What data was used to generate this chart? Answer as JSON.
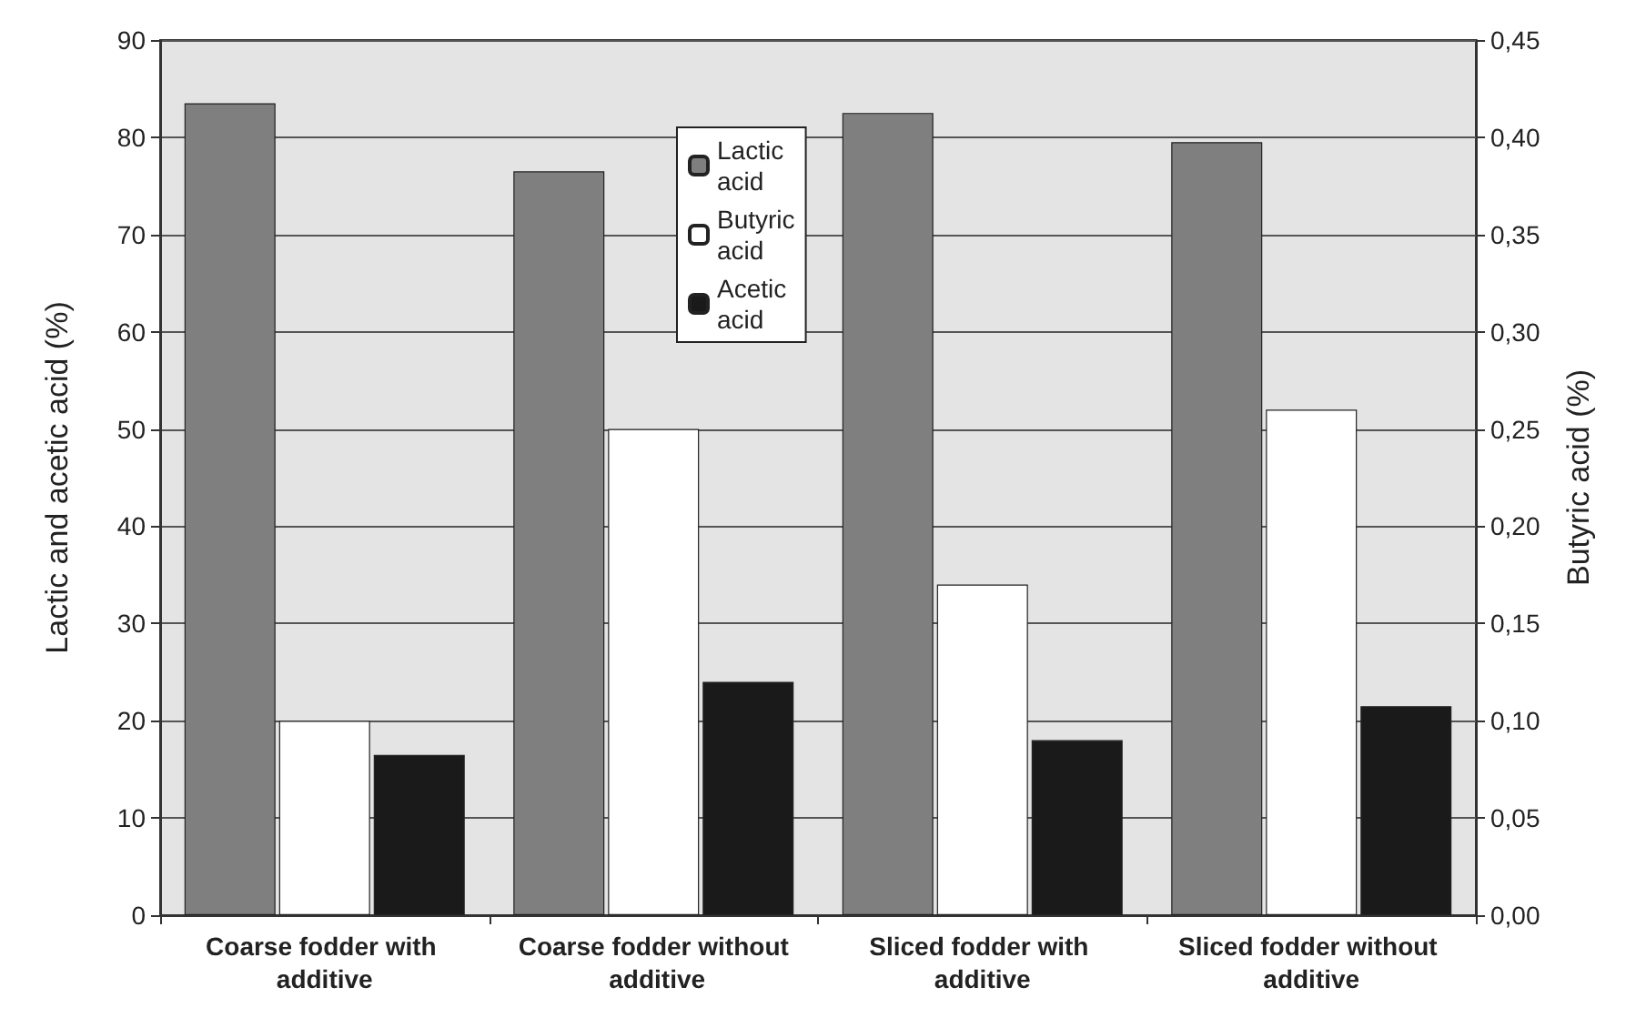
{
  "chart_data": {
    "type": "bar",
    "ylabel": "Lactic and acetic acid (%)",
    "y2label": "Butyric acid (%)",
    "categories": [
      "Coarse fodder with additive",
      "Coarse fodder without additive",
      "Sliced fodder with additive",
      "Sliced fodder without additive"
    ],
    "series": [
      {
        "name": "Lactic acid",
        "color": "#7f7f7f",
        "values": [
          83.5,
          76.5,
          82.5,
          79.5
        ]
      },
      {
        "name": "Butyric acid",
        "color": "#ffffff",
        "axis": "y2",
        "values": [
          0.1,
          0.25,
          0.17,
          0.26
        ]
      },
      {
        "name": "Acetic acid",
        "color": "#1a1a1a",
        "values": [
          16.5,
          24,
          18,
          21.5
        ]
      }
    ],
    "ylim": [
      0,
      90
    ],
    "yticks": [
      0,
      10,
      20,
      30,
      40,
      50,
      60,
      70,
      80,
      90
    ],
    "y2lim": [
      0,
      0.45
    ],
    "y2ticks": [
      {
        "value": 0,
        "label": "0,00"
      },
      {
        "value": 0.05,
        "label": "0,05"
      },
      {
        "value": 0.1,
        "label": "0,10"
      },
      {
        "value": 0.15,
        "label": "0,15"
      },
      {
        "value": 0.2,
        "label": "0,20"
      },
      {
        "value": 0.25,
        "label": "0,25"
      },
      {
        "value": 0.3,
        "label": "0,30"
      },
      {
        "value": 0.35,
        "label": "0,35"
      },
      {
        "value": 0.4,
        "label": "0,40"
      },
      {
        "value": 0.45,
        "label": "0,45"
      }
    ],
    "grid": "y",
    "legend": "top"
  }
}
